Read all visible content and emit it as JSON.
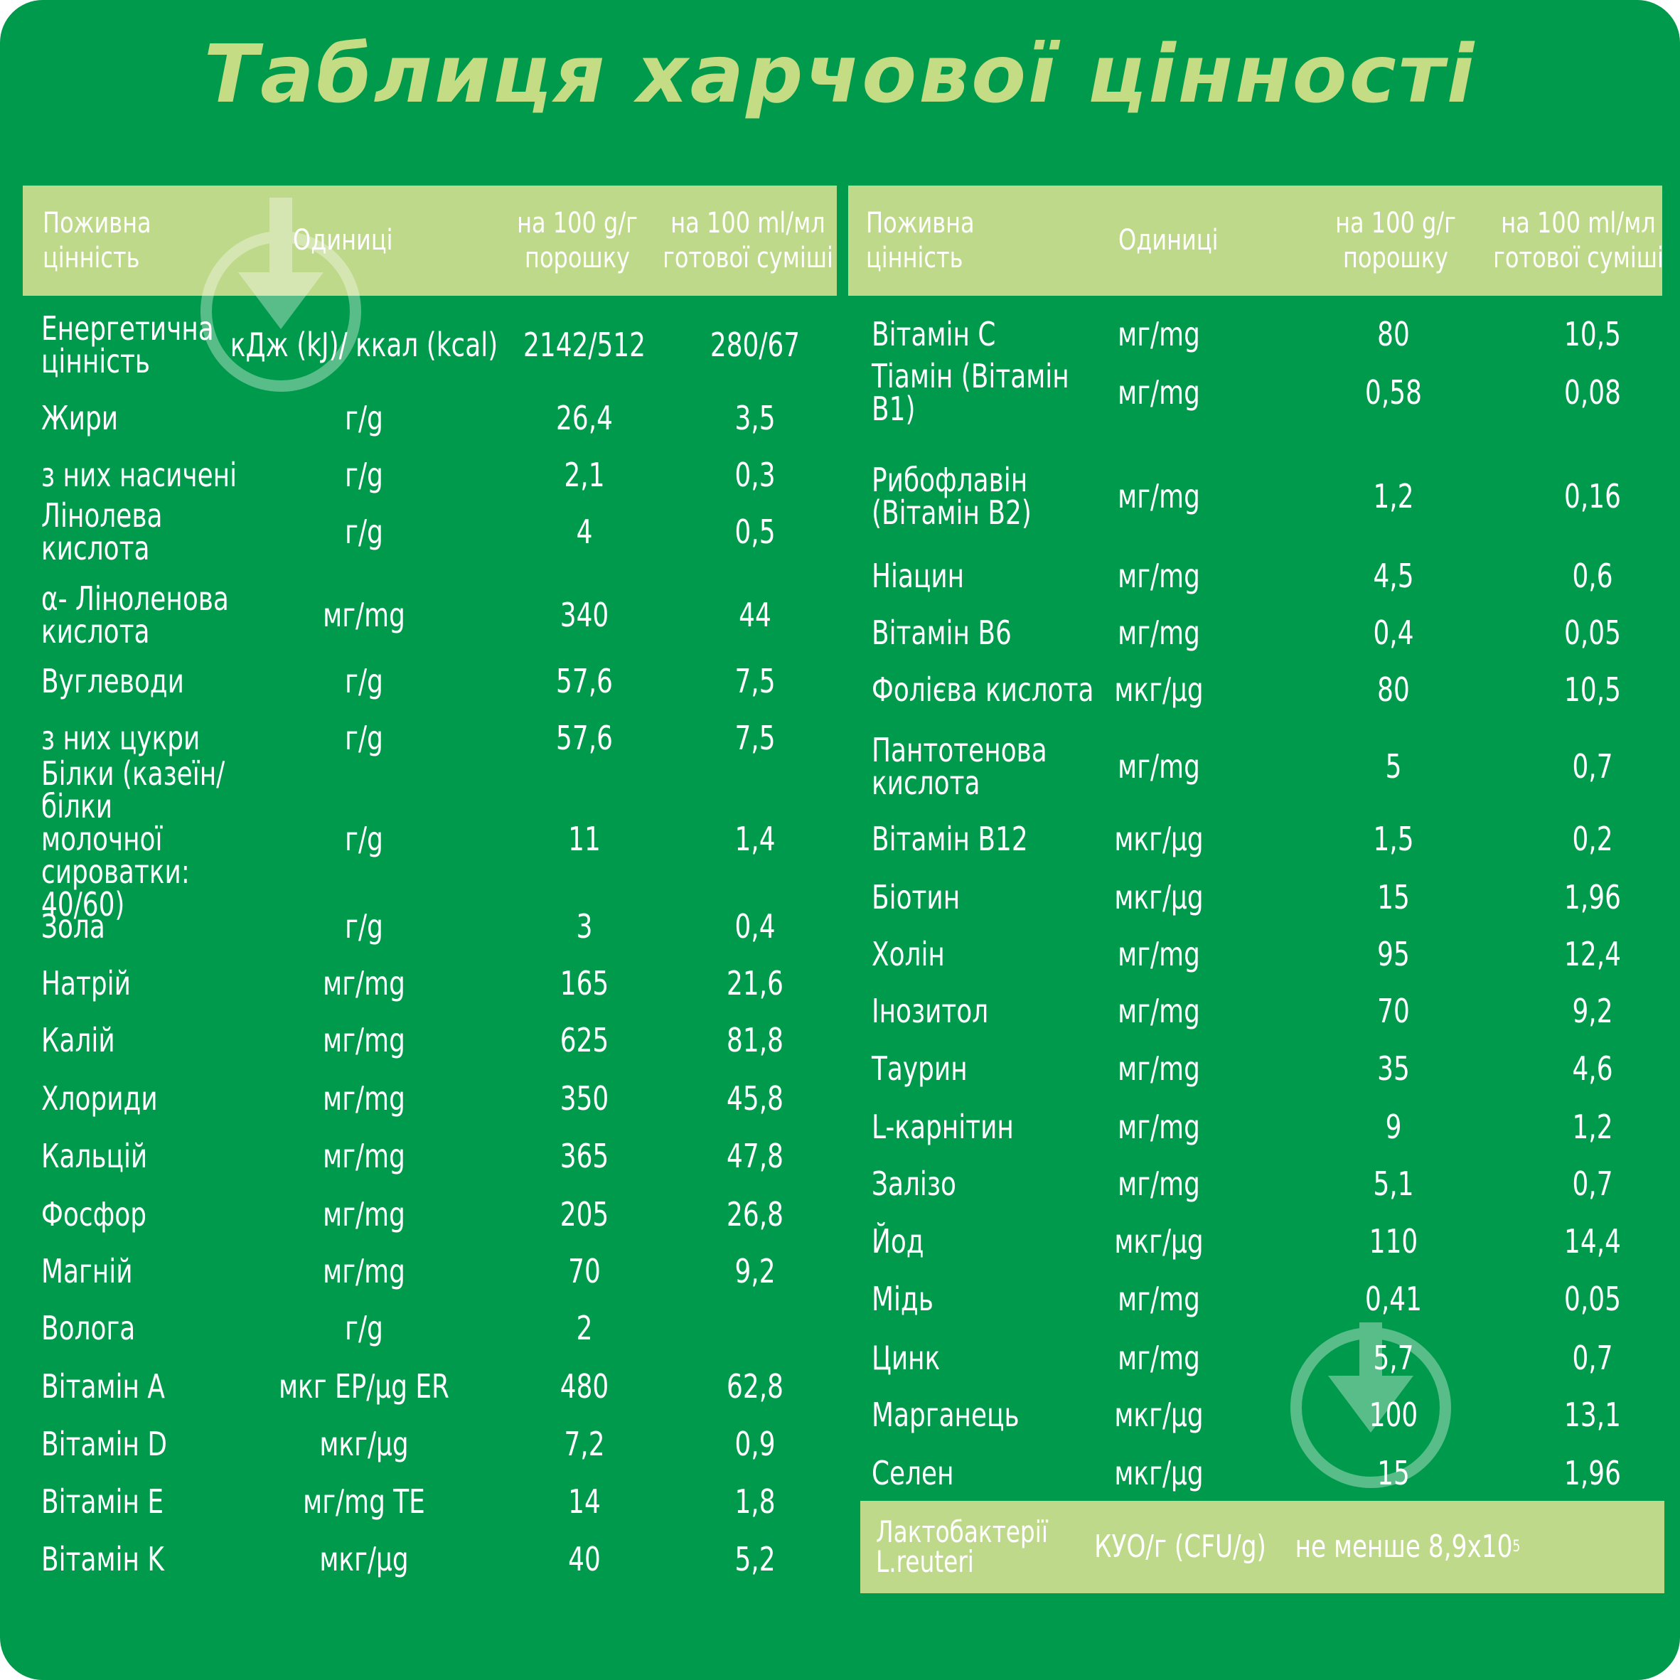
{
  "title": "Таблиця харчової цінності",
  "colors": {
    "background": "#009a4c",
    "header": "#bfd98a",
    "title": "#c4dc84",
    "text": "#ffffff"
  },
  "headers": {
    "nutrient": "Поживна цінність",
    "units": "Одиниці",
    "per_100g": "на 100 g/г\nпорошку",
    "per_100ml": "на 100 ml/мл\nготової суміші"
  },
  "left_table": [
    {
      "name": "Енергетична\nцінність",
      "unit": "кДж (kJ)/ ккал (kcal)",
      "per_100g": "2142/512",
      "per_100ml": "280/67"
    },
    {
      "name": "Жири",
      "unit": "г/g",
      "per_100g": "26,4",
      "per_100ml": "3,5"
    },
    {
      "name": "з них  насичені",
      "unit": "г/g",
      "per_100g": "2,1",
      "per_100ml": "0,3"
    },
    {
      "name": "Лінолева кислота",
      "unit": "г/g",
      "per_100g": "4",
      "per_100ml": "0,5"
    },
    {
      "name": "α- Ліноленова\nкислота",
      "unit": "мг/mg",
      "per_100g": "340",
      "per_100ml": "44"
    },
    {
      "name": "Вуглеводи",
      "unit": "г/g",
      "per_100g": "57,6",
      "per_100ml": "7,5"
    },
    {
      "name": "з них  цукри",
      "unit": "г/g",
      "per_100g": "57,6",
      "per_100ml": "7,5"
    },
    {
      "name": "Білки (казеїн/білки\nмолочної\nсироватки: 40/60)",
      "unit": "г/g",
      "per_100g": "11",
      "per_100ml": "1,4"
    },
    {
      "name": "Зола",
      "unit": "г/g",
      "per_100g": "3",
      "per_100ml": "0,4"
    },
    {
      "name": "Натрій",
      "unit": "мг/mg",
      "per_100g": "165",
      "per_100ml": "21,6"
    },
    {
      "name": "Калій",
      "unit": "мг/mg",
      "per_100g": "625",
      "per_100ml": "81,8"
    },
    {
      "name": "Хлориди",
      "unit": "мг/mg",
      "per_100g": "350",
      "per_100ml": "45,8"
    },
    {
      "name": "Кальцій",
      "unit": "мг/mg",
      "per_100g": "365",
      "per_100ml": "47,8"
    },
    {
      "name": "Фосфор",
      "unit": "мг/mg",
      "per_100g": "205",
      "per_100ml": "26,8"
    },
    {
      "name": "Магній",
      "unit": "мг/mg",
      "per_100g": "70",
      "per_100ml": "9,2"
    },
    {
      "name": "Волога",
      "unit": "г/g",
      "per_100g": "2",
      "per_100ml": ""
    },
    {
      "name": "Вітамін А",
      "unit": "мкг ЕР/µg ER",
      "per_100g": "480",
      "per_100ml": "62,8"
    },
    {
      "name": "Вітамін D",
      "unit": "мкг/µg",
      "per_100g": "7,2",
      "per_100ml": "0,9"
    },
    {
      "name": "Вітамін E",
      "unit": "мг/mg TE",
      "per_100g": "14",
      "per_100ml": "1,8"
    },
    {
      "name": "Вітамін K",
      "unit": "мкг/µg",
      "per_100g": "40",
      "per_100ml": "5,2"
    }
  ],
  "right_table": [
    {
      "name": "Вітамін С",
      "unit": "мг/mg",
      "per_100g": "80",
      "per_100ml": "10,5"
    },
    {
      "name": "Тіамін (Вітамін В1)",
      "unit": "мг/mg",
      "per_100g": "0,58",
      "per_100ml": "0,08"
    },
    {
      "name": "Рибофлавін\n(Вітамін В2)",
      "unit": "мг/mg",
      "per_100g": "1,2",
      "per_100ml": "0,16"
    },
    {
      "name": "Ніацин",
      "unit": "мг/mg",
      "per_100g": "4,5",
      "per_100ml": "0,6"
    },
    {
      "name": "Вітамін В6",
      "unit": "мг/mg",
      "per_100g": "0,4",
      "per_100ml": "0,05"
    },
    {
      "name": "Фолієва кислота",
      "unit": "мкг/µg",
      "per_100g": "80",
      "per_100ml": "10,5"
    },
    {
      "name": "Пантотенова\nкислота",
      "unit": "мг/mg",
      "per_100g": "5",
      "per_100ml": "0,7"
    },
    {
      "name": "Вітамін В12",
      "unit": "мкг/µg",
      "per_100g": "1,5",
      "per_100ml": "0,2"
    },
    {
      "name": "Біотин",
      "unit": "мкг/µg",
      "per_100g": "15",
      "per_100ml": "1,96"
    },
    {
      "name": "Холін",
      "unit": "мг/mg",
      "per_100g": "95",
      "per_100ml": "12,4"
    },
    {
      "name": "Інозитол",
      "unit": "мг/mg",
      "per_100g": "70",
      "per_100ml": "9,2"
    },
    {
      "name": "Таурин",
      "unit": "мг/mg",
      "per_100g": "35",
      "per_100ml": "4,6"
    },
    {
      "name": "L-карнітин",
      "unit": "мг/mg",
      "per_100g": "9",
      "per_100ml": "1,2"
    },
    {
      "name": "Залізо",
      "unit": "мг/mg",
      "per_100g": "5,1",
      "per_100ml": "0,7"
    },
    {
      "name": "Йод",
      "unit": "мкг/µg",
      "per_100g": "110",
      "per_100ml": "14,4"
    },
    {
      "name": "Мідь",
      "unit": "мг/mg",
      "per_100g": "0,41",
      "per_100ml": "0,05"
    },
    {
      "name": "Цинк",
      "unit": "мг/mg",
      "per_100g": "5,7",
      "per_100ml": "0,7"
    },
    {
      "name": "Марганець",
      "unit": "мкг/µg",
      "per_100g": "100",
      "per_100ml": "13,1"
    },
    {
      "name": "Селен",
      "unit": "мкг/µg",
      "per_100g": "15",
      "per_100ml": "1,96"
    }
  ],
  "probiotic": {
    "name": "Лактобактерії\nL.reuteri",
    "unit": "КУО/г (CFU/g)",
    "value": "не менше 8,9х10",
    "exponent": "5"
  },
  "watermark_icon": "download-arrow-icon"
}
